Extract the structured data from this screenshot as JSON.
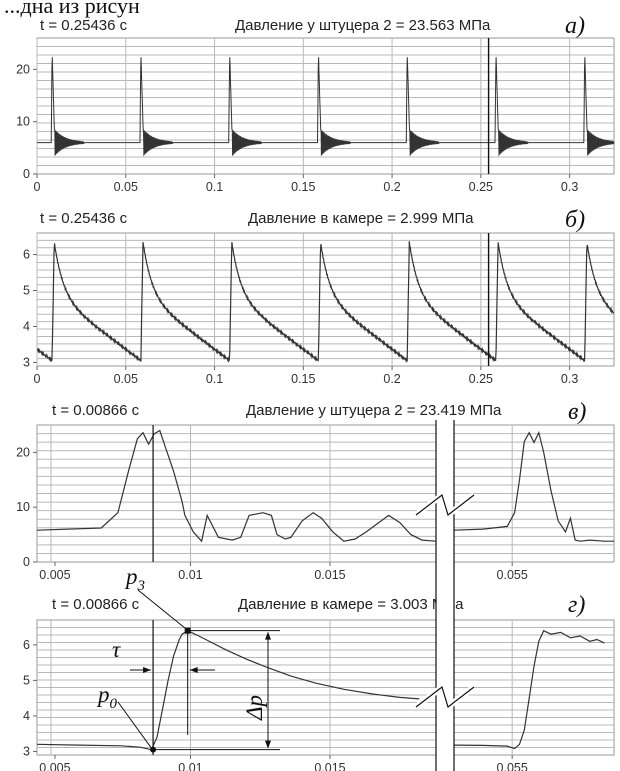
{
  "top_caption_fragment": "...дна из рисун",
  "break_symbol": "zigzag-break",
  "chart_data": [
    {
      "id": "a",
      "type": "line",
      "readout_time": "t = 0.25436 c",
      "readout_value": "Давление у штуцера 2 = 23.563 МПа",
      "panel_label": "а)",
      "xlim": [
        0,
        0.325
      ],
      "ylim": [
        0,
        26
      ],
      "xticks": [
        "0",
        "0.05",
        "0.1",
        "0.15",
        "0.2",
        "0.25",
        "0.3"
      ],
      "xtick_values": [
        0,
        0.05,
        0.1,
        0.15,
        0.2,
        0.25,
        0.3
      ],
      "yticks": [
        "0",
        "10",
        "20"
      ],
      "ytick_values": [
        0,
        10,
        20
      ],
      "cursor_x": 0.25436,
      "series": [
        {
          "pulse_times": [
            0.0085,
            0.0585,
            0.1085,
            0.1585,
            0.2085,
            0.2585,
            0.3085
          ],
          "baseline": 6.0,
          "peak": 23.5
        }
      ]
    },
    {
      "id": "b",
      "type": "line",
      "readout_time": "t = 0.25436 c",
      "readout_value": "Давление в камере = 2.999 МПа",
      "panel_label": "б)",
      "xlim": [
        0,
        0.325
      ],
      "ylim": [
        2.9,
        6.6
      ],
      "xticks": [
        "0",
        "0.05",
        "0.1",
        "0.15",
        "0.2",
        "0.25",
        "0.3"
      ],
      "xtick_values": [
        0,
        0.05,
        0.1,
        0.15,
        0.2,
        0.25,
        0.3
      ],
      "yticks": [
        "3",
        "4",
        "5",
        "6"
      ],
      "ytick_values": [
        3,
        4,
        5,
        6
      ],
      "cursor_x": 0.25436,
      "series": [
        {
          "pulse_times": [
            0.0085,
            0.0585,
            0.1085,
            0.1585,
            0.2085,
            0.2585,
            0.3085
          ],
          "p0": 3.05,
          "p3": 6.35
        }
      ]
    },
    {
      "id": "v",
      "type": "line",
      "readout_time": "t = 0.00866 c",
      "readout_value": "Давление у штуцера 2 = 23.419 МПа",
      "panel_label": "в)",
      "xlim": [
        0.0045,
        0.0188
      ],
      "xlim_after_break": [
        0.0526,
        0.0592
      ],
      "ylim": [
        0,
        25
      ],
      "xticks": [
        "0.005",
        "0.01",
        "0.015",
        "0.055"
      ],
      "xtick_values": [
        0.005,
        0.01,
        0.015,
        0.055
      ],
      "yticks": [
        "0",
        "10",
        "20"
      ],
      "ytick_values": [
        0,
        10,
        20
      ],
      "cursor_x": 0.00866,
      "series": [
        {
          "x": [
            0.0045,
            0.0068,
            0.0074,
            0.0078,
            0.0081,
            0.0083,
            0.0085,
            0.0087,
            0.0089,
            0.0091,
            0.0094,
            0.0097,
            0.0098,
            0.0101,
            0.0104,
            0.0106,
            0.011,
            0.0115,
            0.0118,
            0.0121,
            0.0126,
            0.0129,
            0.0131,
            0.0134,
            0.0136,
            0.014,
            0.0144,
            0.0147,
            0.0151,
            0.0155,
            0.0159,
            0.0163,
            0.0167,
            0.0171,
            0.0175,
            0.0179,
            0.0183,
            0.0188
          ],
          "y": [
            5.8,
            6.2,
            9.0,
            17.0,
            22.5,
            23.6,
            21.5,
            23.4,
            24.0,
            21.0,
            16.5,
            11.0,
            8.5,
            5.5,
            3.8,
            8.5,
            4.5,
            4.0,
            4.5,
            8.5,
            9.0,
            8.5,
            5.0,
            4.2,
            4.5,
            7.5,
            9.0,
            8.0,
            5.5,
            3.8,
            4.2,
            5.5,
            7.0,
            8.5,
            7.2,
            5.0,
            4.0,
            3.8
          ]
        },
        {
          "x": [
            0.0526,
            0.0538,
            0.0548,
            0.0551,
            0.0553,
            0.0555,
            0.0557,
            0.0559,
            0.0561,
            0.0563,
            0.0566,
            0.0569,
            0.0572,
            0.0574,
            0.0576,
            0.0578,
            0.0582,
            0.0588,
            0.0592
          ],
          "y": [
            5.8,
            6.0,
            6.5,
            9.0,
            15.0,
            22.0,
            23.6,
            21.8,
            23.6,
            20.0,
            13.0,
            7.5,
            5.5,
            8.0,
            4.0,
            3.8,
            4.0,
            3.8,
            3.8
          ]
        }
      ]
    },
    {
      "id": "g",
      "type": "line",
      "readout_time": "t = 0.00866 c",
      "readout_value": "Давление в камере = 3.003 МПа",
      "panel_label": "г)",
      "xlim": [
        0.0045,
        0.0188
      ],
      "xlim_after_break": [
        0.0526,
        0.0592
      ],
      "ylim": [
        2.9,
        6.7
      ],
      "xticks": [
        "0.005",
        "0.01",
        "0.015",
        "0.055"
      ],
      "xtick_values": [
        0.005,
        0.01,
        0.015,
        0.055
      ],
      "yticks": [
        "3",
        "4",
        "5",
        "6"
      ],
      "ytick_values": [
        3,
        4,
        5,
        6
      ],
      "cursor_x": 0.00866,
      "series": [
        {
          "x": [
            0.0045,
            0.006,
            0.0075,
            0.0082,
            0.0086,
            0.0088,
            0.009,
            0.0092,
            0.0094,
            0.0096,
            0.0097,
            0.0099,
            0.0103,
            0.0108,
            0.0113,
            0.012,
            0.0128,
            0.0136,
            0.0145,
            0.0155,
            0.0165,
            0.0175,
            0.0182
          ],
          "y": [
            3.2,
            3.18,
            3.16,
            3.12,
            3.05,
            3.4,
            4.2,
            5.0,
            5.7,
            6.15,
            6.3,
            6.4,
            6.25,
            6.05,
            5.85,
            5.6,
            5.35,
            5.12,
            4.92,
            4.75,
            4.62,
            4.52,
            4.48
          ]
        },
        {
          "x": [
            0.0526,
            0.0538,
            0.0548,
            0.0551,
            0.0553,
            0.0555,
            0.0557,
            0.0559,
            0.0561,
            0.0563,
            0.0566,
            0.057,
            0.0574,
            0.0578,
            0.0582,
            0.0585,
            0.0588
          ],
          "y": [
            3.18,
            3.17,
            3.15,
            3.08,
            3.2,
            3.6,
            4.5,
            5.4,
            6.1,
            6.4,
            6.3,
            6.35,
            6.2,
            6.25,
            6.1,
            6.15,
            6.05
          ]
        }
      ],
      "annotations": {
        "p0": {
          "main": "p",
          "sub": "0",
          "x": 0.00866,
          "y": 3.05
        },
        "p3": {
          "main": "p",
          "sub": "3",
          "x": 0.0099,
          "y": 6.4
        },
        "tau": {
          "label": "τ",
          "x_from": 0.00866,
          "x_to": 0.0099
        },
        "dp": {
          "label": "Δp",
          "y_from": 3.05,
          "y_to": 6.4
        }
      }
    }
  ]
}
